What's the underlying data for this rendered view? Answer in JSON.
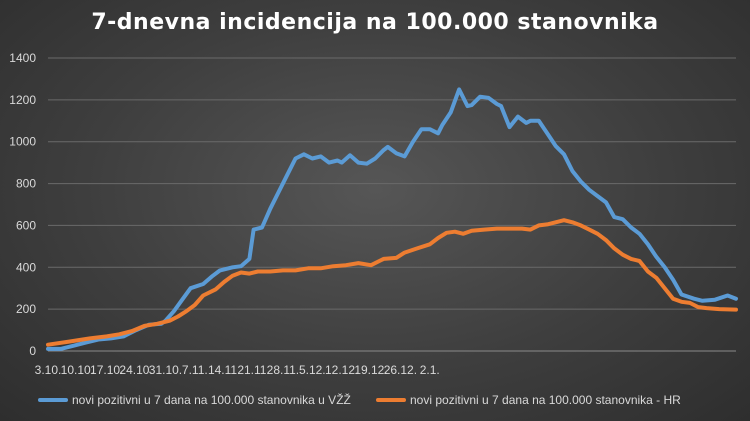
{
  "chart_data": {
    "type": "line",
    "title": "7-dnevna incidencija na 100.000 stanovnika",
    "xlabel": "",
    "ylabel": "",
    "ylim": [
      0,
      1400
    ],
    "yticks": [
      0,
      200,
      400,
      600,
      800,
      1000,
      1200,
      1400
    ],
    "x_ticks": [
      "3.10.",
      "10.10.",
      "17.10.",
      "24.10.",
      "31.10.",
      "7.11.",
      "14.11.",
      "21.11.",
      "28.11.",
      "5.12.",
      "12.12.",
      "19.12.",
      "26.12.",
      "2.1."
    ],
    "grid": "horizontal",
    "legend_position": "bottom",
    "series": [
      {
        "name": "novi pozitivni u 7 dana na 100.000 stanovnika u VŽŽ",
        "color": "#5b9bd5",
        "points": [
          [
            0,
            10
          ],
          [
            3,
            10
          ],
          [
            6,
            25
          ],
          [
            9,
            40
          ],
          [
            12,
            55
          ],
          [
            15,
            60
          ],
          [
            18,
            70
          ],
          [
            21,
            100
          ],
          [
            24,
            125
          ],
          [
            27,
            130
          ],
          [
            28,
            145
          ],
          [
            30,
            190
          ],
          [
            32,
            245
          ],
          [
            34,
            300
          ],
          [
            37,
            320
          ],
          [
            39,
            355
          ],
          [
            41,
            385
          ],
          [
            44,
            400
          ],
          [
            46,
            405
          ],
          [
            48,
            440
          ],
          [
            49,
            580
          ],
          [
            51,
            590
          ],
          [
            53,
            680
          ],
          [
            55,
            760
          ],
          [
            57,
            840
          ],
          [
            59,
            920
          ],
          [
            61,
            940
          ],
          [
            63,
            920
          ],
          [
            65,
            930
          ],
          [
            67,
            900
          ],
          [
            69,
            910
          ],
          [
            70,
            900
          ],
          [
            72,
            935
          ],
          [
            74,
            900
          ],
          [
            76,
            895
          ],
          [
            78,
            920
          ],
          [
            80,
            960
          ],
          [
            81,
            975
          ],
          [
            83,
            945
          ],
          [
            85,
            930
          ],
          [
            87,
            1000
          ],
          [
            89,
            1060
          ],
          [
            91,
            1060
          ],
          [
            93,
            1040
          ],
          [
            94,
            1080
          ],
          [
            96,
            1140
          ],
          [
            98,
            1250
          ],
          [
            100,
            1170
          ],
          [
            101,
            1175
          ],
          [
            103,
            1215
          ],
          [
            105,
            1210
          ],
          [
            107,
            1180
          ],
          [
            108,
            1170
          ],
          [
            110,
            1070
          ],
          [
            112,
            1120
          ],
          [
            114,
            1090
          ],
          [
            115,
            1100
          ],
          [
            117,
            1100
          ],
          [
            119,
            1040
          ],
          [
            121,
            980
          ],
          [
            123,
            940
          ],
          [
            125,
            860
          ],
          [
            127,
            810
          ],
          [
            129,
            770
          ],
          [
            131,
            740
          ],
          [
            133,
            710
          ],
          [
            135,
            640
          ],
          [
            137,
            630
          ],
          [
            139,
            590
          ],
          [
            141,
            560
          ],
          [
            143,
            510
          ],
          [
            145,
            450
          ],
          [
            147,
            400
          ],
          [
            149,
            340
          ],
          [
            151,
            270
          ],
          [
            154,
            250
          ],
          [
            156,
            240
          ],
          [
            159,
            245
          ],
          [
            162,
            265
          ],
          [
            164,
            250
          ]
        ]
      },
      {
        "name": "novi pozitivni u 7 dana na 100.000 stanovnika - HR",
        "color": "#ed7d31",
        "points": [
          [
            0,
            30
          ],
          [
            5,
            45
          ],
          [
            10,
            60
          ],
          [
            14,
            70
          ],
          [
            17,
            80
          ],
          [
            20,
            95
          ],
          [
            23,
            120
          ],
          [
            26,
            130
          ],
          [
            29,
            145
          ],
          [
            31,
            165
          ],
          [
            33,
            190
          ],
          [
            35,
            220
          ],
          [
            37,
            265
          ],
          [
            40,
            295
          ],
          [
            42,
            330
          ],
          [
            44,
            360
          ],
          [
            46,
            375
          ],
          [
            48,
            370
          ],
          [
            50,
            380
          ],
          [
            53,
            380
          ],
          [
            56,
            385
          ],
          [
            59,
            385
          ],
          [
            62,
            395
          ],
          [
            65,
            395
          ],
          [
            68,
            405
          ],
          [
            71,
            410
          ],
          [
            74,
            420
          ],
          [
            77,
            410
          ],
          [
            80,
            440
          ],
          [
            83,
            445
          ],
          [
            85,
            470
          ],
          [
            88,
            490
          ],
          [
            91,
            510
          ],
          [
            93,
            540
          ],
          [
            95,
            565
          ],
          [
            97,
            570
          ],
          [
            99,
            560
          ],
          [
            101,
            575
          ],
          [
            104,
            580
          ],
          [
            107,
            585
          ],
          [
            110,
            585
          ],
          [
            113,
            585
          ],
          [
            115,
            580
          ],
          [
            117,
            600
          ],
          [
            119,
            605
          ],
          [
            121,
            615
          ],
          [
            123,
            625
          ],
          [
            125,
            615
          ],
          [
            127,
            600
          ],
          [
            129,
            580
          ],
          [
            131,
            560
          ],
          [
            133,
            530
          ],
          [
            135,
            490
          ],
          [
            137,
            460
          ],
          [
            139,
            440
          ],
          [
            141,
            430
          ],
          [
            143,
            380
          ],
          [
            145,
            350
          ],
          [
            147,
            300
          ],
          [
            149,
            250
          ],
          [
            151,
            235
          ],
          [
            153,
            230
          ],
          [
            155,
            210
          ],
          [
            157,
            205
          ],
          [
            160,
            200
          ],
          [
            164,
            198
          ]
        ]
      }
    ]
  }
}
